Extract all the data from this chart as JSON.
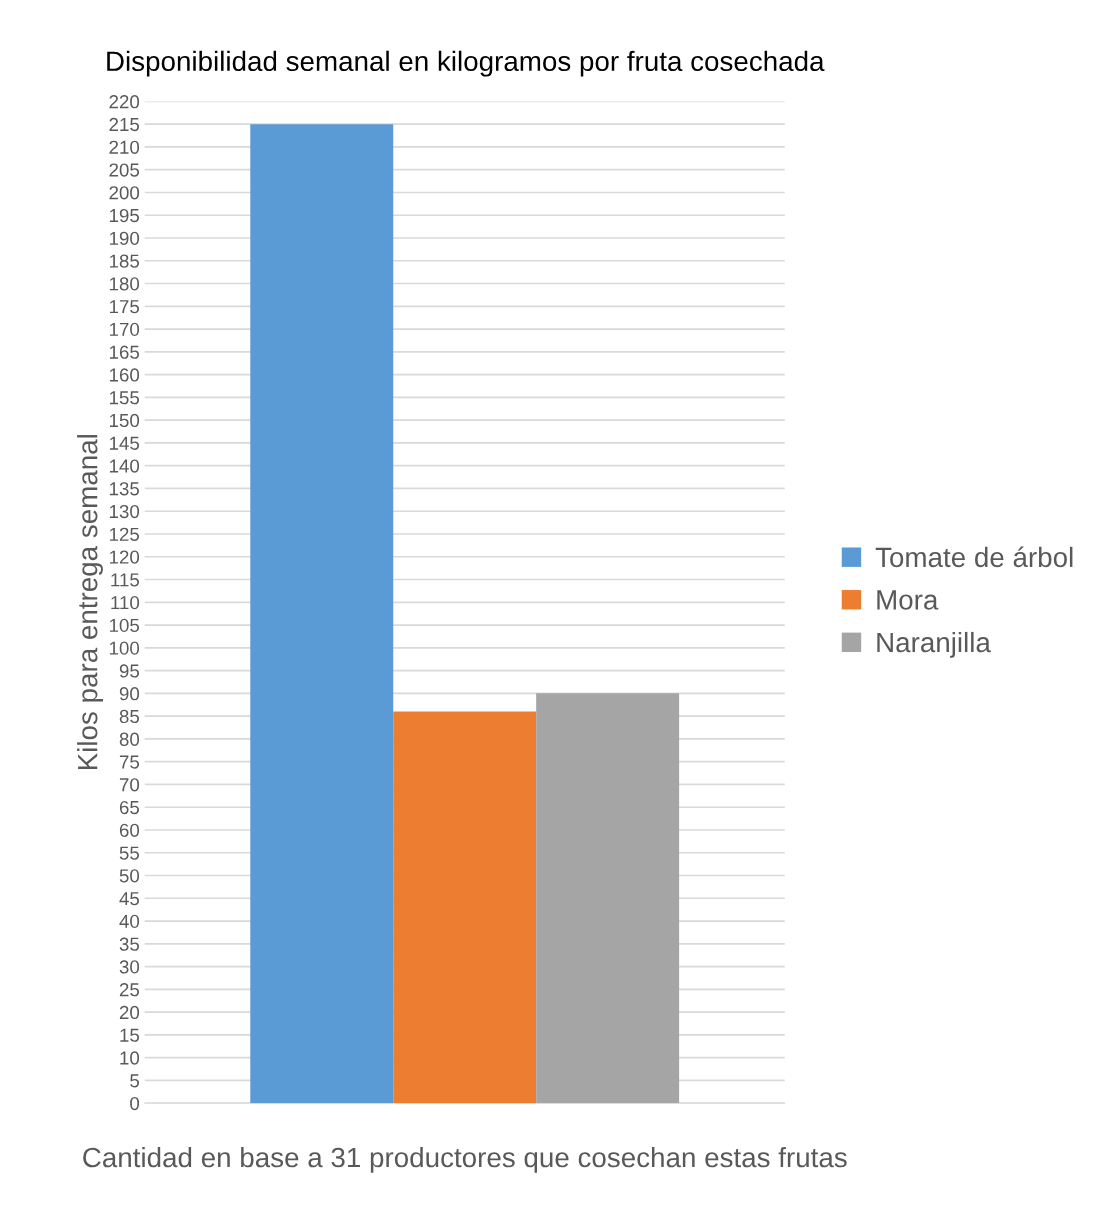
{
  "chart_data": {
    "type": "bar",
    "title": "Disponibilidad semanal en kilogramos por fruta cosechada",
    "xlabel": "Cantidad en base a 31 productores que cosechan estas frutas",
    "ylabel": "Kilos para entrega semanal",
    "categories": [
      null
    ],
    "series": [
      {
        "name": "Tomate de árbol",
        "color": "#5b9bd5",
        "values": [
          215
        ]
      },
      {
        "name": "Mora",
        "color": "#ed7d31",
        "values": [
          86
        ]
      },
      {
        "name": "Naranjilla",
        "color": "#a5a5a5",
        "values": [
          90
        ]
      }
    ],
    "ylim": [
      0,
      220
    ],
    "yticks": [
      0,
      5,
      10,
      15,
      20,
      25,
      30,
      35,
      40,
      45,
      50,
      55,
      60,
      65,
      70,
      75,
      80,
      85,
      90,
      95,
      100,
      105,
      110,
      115,
      120,
      125,
      130,
      135,
      140,
      145,
      150,
      155,
      160,
      165,
      170,
      175,
      180,
      185,
      190,
      195,
      200,
      205,
      210,
      215,
      220
    ],
    "grid": "y",
    "legend": "right"
  }
}
